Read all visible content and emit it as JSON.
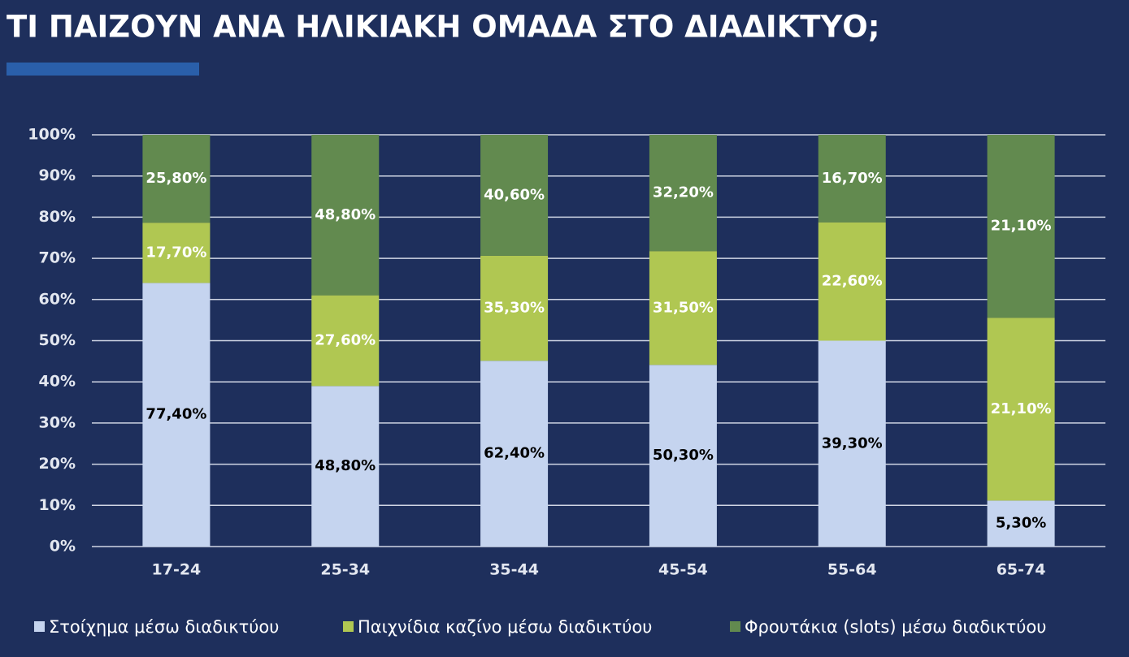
{
  "chart_data": {
    "type": "bar",
    "stacking": "percent",
    "title": "ΤΙ ΠΑΙΖΟΥΝ ΑΝΑ ΗΛΙΚΙΑΚΗ ΟΜΑΔΑ ΣΤΟ ΔΙΑΔΙΚΤΥΟ;",
    "categories": [
      "17-24",
      "25-34",
      "35-44",
      "45-54",
      "55-64",
      "65-74"
    ],
    "series": [
      {
        "name": "Στοίχημα μέσω διαδικτύου",
        "color": "#c5d4ef",
        "label_color": "#000000",
        "values": [
          77.4,
          48.8,
          62.4,
          50.3,
          39.3,
          5.3
        ],
        "value_labels": [
          "77,40%",
          "48,80%",
          "62,40%",
          "50,30%",
          "39,30%",
          "5,30%"
        ]
      },
      {
        "name": "Παιχνίδια καζίνο μέσω διαδικτύου",
        "color": "#b0c752",
        "label_color": "#ffffff",
        "values": [
          17.7,
          27.6,
          35.3,
          31.5,
          22.6,
          21.1
        ],
        "value_labels": [
          "17,70%",
          "27,60%",
          "35,30%",
          "31,50%",
          "22,60%",
          "21,10%"
        ]
      },
      {
        "name": "Φρουτάκια (slots) μέσω διαδικτύου",
        "color": "#628a4f",
        "label_color": "#ffffff",
        "values": [
          25.8,
          48.8,
          40.6,
          32.2,
          16.7,
          21.1
        ],
        "value_labels": [
          "25,80%",
          "48,80%",
          "40,60%",
          "32,20%",
          "16,70%",
          "21,10%"
        ]
      }
    ],
    "ylim": [
      0,
      100
    ],
    "yticks": [
      {
        "value": 0,
        "label": "0%"
      },
      {
        "value": 10,
        "label": "10%"
      },
      {
        "value": 20,
        "label": "20%"
      },
      {
        "value": 30,
        "label": "30%"
      },
      {
        "value": 40,
        "label": "40%"
      },
      {
        "value": 50,
        "label": "50%"
      },
      {
        "value": 60,
        "label": "60%"
      },
      {
        "value": 70,
        "label": "70%"
      },
      {
        "value": 80,
        "label": "80%"
      },
      {
        "value": 90,
        "label": "90%"
      },
      {
        "value": 100,
        "label": "100%"
      }
    ],
    "grid": true,
    "legend": "bottom"
  }
}
